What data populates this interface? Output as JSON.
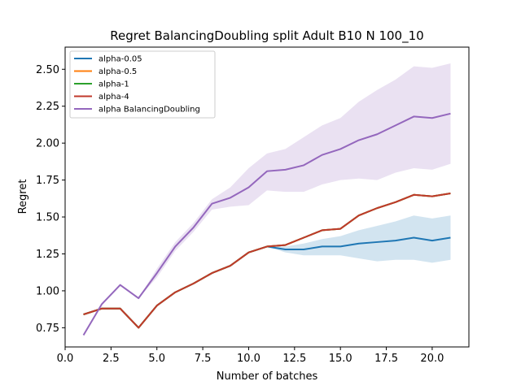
{
  "chart_data": {
    "type": "line",
    "title": "Regret BalancingDoubling split Adult B10 N 100_10",
    "xlabel": "Number of batches",
    "ylabel": "Regret",
    "xlim": [
      0.0,
      22.0
    ],
    "ylim": [
      0.62,
      2.65
    ],
    "xticks": [
      0,
      2.5,
      5,
      7.5,
      10,
      12.5,
      15,
      17.5,
      20
    ],
    "xtick_labels": [
      "0.0",
      "2.5",
      "5.0",
      "7.5",
      "10.0",
      "12.5",
      "15.0",
      "17.5",
      "20.0"
    ],
    "yticks": [
      0.75,
      1.0,
      1.25,
      1.5,
      1.75,
      2.0,
      2.25,
      2.5
    ],
    "ytick_labels": [
      "0.75",
      "1.00",
      "1.25",
      "1.50",
      "1.75",
      "2.00",
      "2.25",
      "2.50"
    ],
    "grid": false,
    "legend_position": "top-left",
    "x": [
      1,
      2,
      3,
      4,
      5,
      6,
      7,
      8,
      9,
      10,
      11,
      12,
      13,
      14,
      15,
      16,
      17,
      18,
      19,
      20,
      21
    ],
    "series": [
      {
        "name": "alpha-0.05",
        "color": "#1f77b4",
        "values": [
          0.84,
          0.88,
          0.88,
          0.75,
          0.9,
          0.99,
          1.05,
          1.12,
          1.17,
          1.26,
          1.3,
          1.28,
          1.28,
          1.3,
          1.3,
          1.32,
          1.33,
          1.34,
          1.36,
          1.34,
          1.36
        ],
        "band_lower": [
          0.84,
          0.88,
          0.88,
          0.75,
          0.9,
          0.99,
          1.05,
          1.12,
          1.17,
          1.26,
          1.3,
          1.26,
          1.24,
          1.24,
          1.24,
          1.22,
          1.2,
          1.21,
          1.21,
          1.19,
          1.21
        ],
        "band_upper": [
          0.84,
          0.88,
          0.88,
          0.75,
          0.9,
          0.99,
          1.05,
          1.12,
          1.17,
          1.26,
          1.3,
          1.3,
          1.32,
          1.35,
          1.37,
          1.41,
          1.44,
          1.47,
          1.51,
          1.49,
          1.51
        ]
      },
      {
        "name": "alpha-0.5",
        "color": "#ff7f0e",
        "values": [
          0.84,
          0.88,
          0.88,
          0.75,
          0.9,
          0.99,
          1.05,
          1.12,
          1.17,
          1.26,
          1.3,
          1.31,
          1.36,
          1.41,
          1.42,
          1.51,
          1.56,
          1.6,
          1.65,
          1.64,
          1.66
        ]
      },
      {
        "name": "alpha-1",
        "color": "#2ca02c",
        "values": [
          0.84,
          0.88,
          0.88,
          0.75,
          0.9,
          0.99,
          1.05,
          1.12,
          1.17,
          1.26,
          1.3,
          1.31,
          1.36,
          1.41,
          1.42,
          1.51,
          1.56,
          1.6,
          1.65,
          1.64,
          1.66
        ]
      },
      {
        "name": "alpha-4",
        "color": "#c0392b",
        "values": [
          0.84,
          0.88,
          0.88,
          0.75,
          0.9,
          0.99,
          1.05,
          1.12,
          1.17,
          1.26,
          1.3,
          1.31,
          1.36,
          1.41,
          1.42,
          1.51,
          1.56,
          1.6,
          1.65,
          1.64,
          1.66
        ]
      },
      {
        "name": "alpha BalancingDoubling",
        "color": "#9467bd",
        "values": [
          0.7,
          0.91,
          1.04,
          0.95,
          1.12,
          1.3,
          1.43,
          1.59,
          1.63,
          1.7,
          1.81,
          1.82,
          1.85,
          1.92,
          1.96,
          2.02,
          2.06,
          2.12,
          2.18,
          2.17,
          2.2
        ],
        "band_lower": [
          0.7,
          0.91,
          1.04,
          0.95,
          1.09,
          1.27,
          1.4,
          1.55,
          1.57,
          1.58,
          1.68,
          1.67,
          1.67,
          1.72,
          1.75,
          1.76,
          1.75,
          1.8,
          1.83,
          1.82,
          1.86
        ],
        "band_upper": [
          0.7,
          0.91,
          1.04,
          0.95,
          1.15,
          1.33,
          1.46,
          1.62,
          1.7,
          1.83,
          1.93,
          1.96,
          2.04,
          2.12,
          2.17,
          2.28,
          2.36,
          2.43,
          2.52,
          2.51,
          2.54
        ]
      }
    ]
  }
}
